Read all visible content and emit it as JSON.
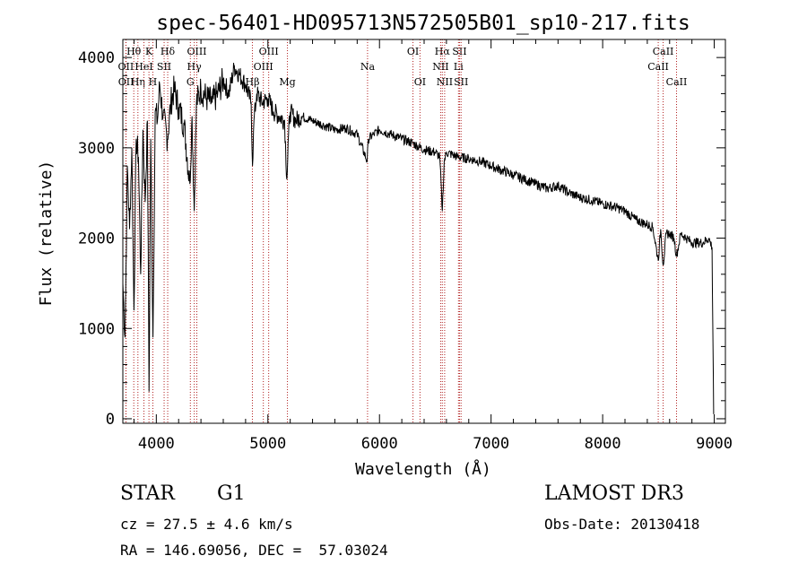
{
  "chart_data": {
    "type": "line",
    "title": "spec-56401-HD095713N572505B01_sp10-217.fits",
    "xlabel": "Wavelength (Å)",
    "ylabel": "Flux (relative)",
    "xlim": [
      3700,
      9100
    ],
    "ylim": [
      -50,
      4200
    ],
    "x_ticks": [
      4000,
      5000,
      6000,
      7000,
      8000,
      9000
    ],
    "y_ticks": [
      0,
      1000,
      2000,
      3000,
      4000
    ],
    "series": [
      {
        "name": "flux",
        "x": [
          3700,
          3720,
          3740,
          3760,
          3780,
          3800,
          3820,
          3840,
          3860,
          3880,
          3900,
          3920,
          3935,
          3950,
          3970,
          3990,
          4010,
          4030,
          4060,
          4100,
          4130,
          4160,
          4200,
          4250,
          4300,
          4320,
          4340,
          4360,
          4400,
          4450,
          4500,
          4550,
          4600,
          4650,
          4700,
          4750,
          4800,
          4850,
          4862,
          4875,
          4900,
          4950,
          5000,
          5050,
          5100,
          5150,
          5170,
          5185,
          5200,
          5250,
          5300,
          5400,
          5500,
          5600,
          5700,
          5800,
          5890,
          5900,
          5950,
          6000,
          6100,
          6200,
          6300,
          6400,
          6500,
          6540,
          6563,
          6580,
          6600,
          6700,
          6800,
          6900,
          7000,
          7100,
          7200,
          7300,
          7400,
          7500,
          7600,
          7700,
          7800,
          7900,
          8000,
          8100,
          8200,
          8300,
          8400,
          8450,
          8498,
          8520,
          8542,
          8570,
          8600,
          8640,
          8662,
          8700,
          8750,
          8800,
          8900,
          8950,
          8980,
          8995
        ],
        "y": [
          1500,
          900,
          2800,
          2100,
          3000,
          1200,
          3100,
          2900,
          1600,
          3200,
          2400,
          3300,
          300,
          3100,
          900,
          3400,
          3300,
          3700,
          3350,
          3100,
          3500,
          3650,
          3450,
          3250,
          2600,
          3350,
          2300,
          3500,
          3650,
          3550,
          3500,
          3600,
          3750,
          3600,
          3900,
          3800,
          3700,
          3500,
          2800,
          3300,
          3600,
          3500,
          3550,
          3400,
          3350,
          3300,
          2650,
          3150,
          3400,
          3300,
          3350,
          3300,
          3250,
          3200,
          3220,
          3150,
          2850,
          3100,
          3150,
          3200,
          3150,
          3100,
          3050,
          2980,
          2950,
          2900,
          2300,
          2850,
          2950,
          2900,
          2880,
          2850,
          2800,
          2750,
          2700,
          2650,
          2600,
          2550,
          2580,
          2500,
          2450,
          2420,
          2380,
          2350,
          2300,
          2200,
          2150,
          2120,
          1750,
          2100,
          1700,
          2050,
          2050,
          2000,
          1800,
          2050,
          2000,
          1950,
          1950,
          2000,
          1900,
          50
        ]
      }
    ],
    "spectral_lines": [
      {
        "label": "Hθ",
        "x": 3798,
        "row": 1
      },
      {
        "label": "OII",
        "x": 3727,
        "row": 2
      },
      {
        "label": "OII",
        "x": 3729,
        "row": 3
      },
      {
        "label": "Hη",
        "x": 3835,
        "row": 3
      },
      {
        "label": "HeI",
        "x": 3889,
        "row": 2
      },
      {
        "label": "K",
        "x": 3934,
        "row": 1
      },
      {
        "label": "H",
        "x": 3969,
        "row": 3
      },
      {
        "label": "SII",
        "x": 4070,
        "row": 2
      },
      {
        "label": "Hδ",
        "x": 4102,
        "row": 1
      },
      {
        "label": "OIII",
        "x": 4363,
        "row": 1
      },
      {
        "label": "Hγ",
        "x": 4340,
        "row": 2
      },
      {
        "label": "G",
        "x": 4305,
        "row": 3
      },
      {
        "label": "Hβ",
        "x": 4861,
        "row": 3
      },
      {
        "label": "OIII",
        "x": 4959,
        "row": 2
      },
      {
        "label": "OIII",
        "x": 5007,
        "row": 1
      },
      {
        "label": "Mg",
        "x": 5175,
        "row": 3
      },
      {
        "label": "Na",
        "x": 5893,
        "row": 2
      },
      {
        "label": "OI",
        "x": 6300,
        "row": 1
      },
      {
        "label": "OI",
        "x": 6363,
        "row": 3
      },
      {
        "label": "Hα",
        "x": 6563,
        "row": 1
      },
      {
        "label": "NII",
        "x": 6548,
        "row": 2
      },
      {
        "label": "NII",
        "x": 6584,
        "row": 3
      },
      {
        "label": "SII",
        "x": 6717,
        "row": 1
      },
      {
        "label": "Li",
        "x": 6708,
        "row": 2
      },
      {
        "label": "SII",
        "x": 6731,
        "row": 3
      },
      {
        "label": "CaII",
        "x": 8542,
        "row": 1
      },
      {
        "label": "CaII",
        "x": 8498,
        "row": 2
      },
      {
        "label": "CaII",
        "x": 8662,
        "row": 3
      }
    ]
  },
  "info": {
    "object_class": "STAR",
    "subclass": "G1",
    "redshift": "cz = 27.5 ± 4.6 km/s",
    "coordinates": "RA = 146.69056, DEC =  57.03024",
    "survey": "LAMOST DR3",
    "obs_date": "Obs-Date: 20130418"
  }
}
